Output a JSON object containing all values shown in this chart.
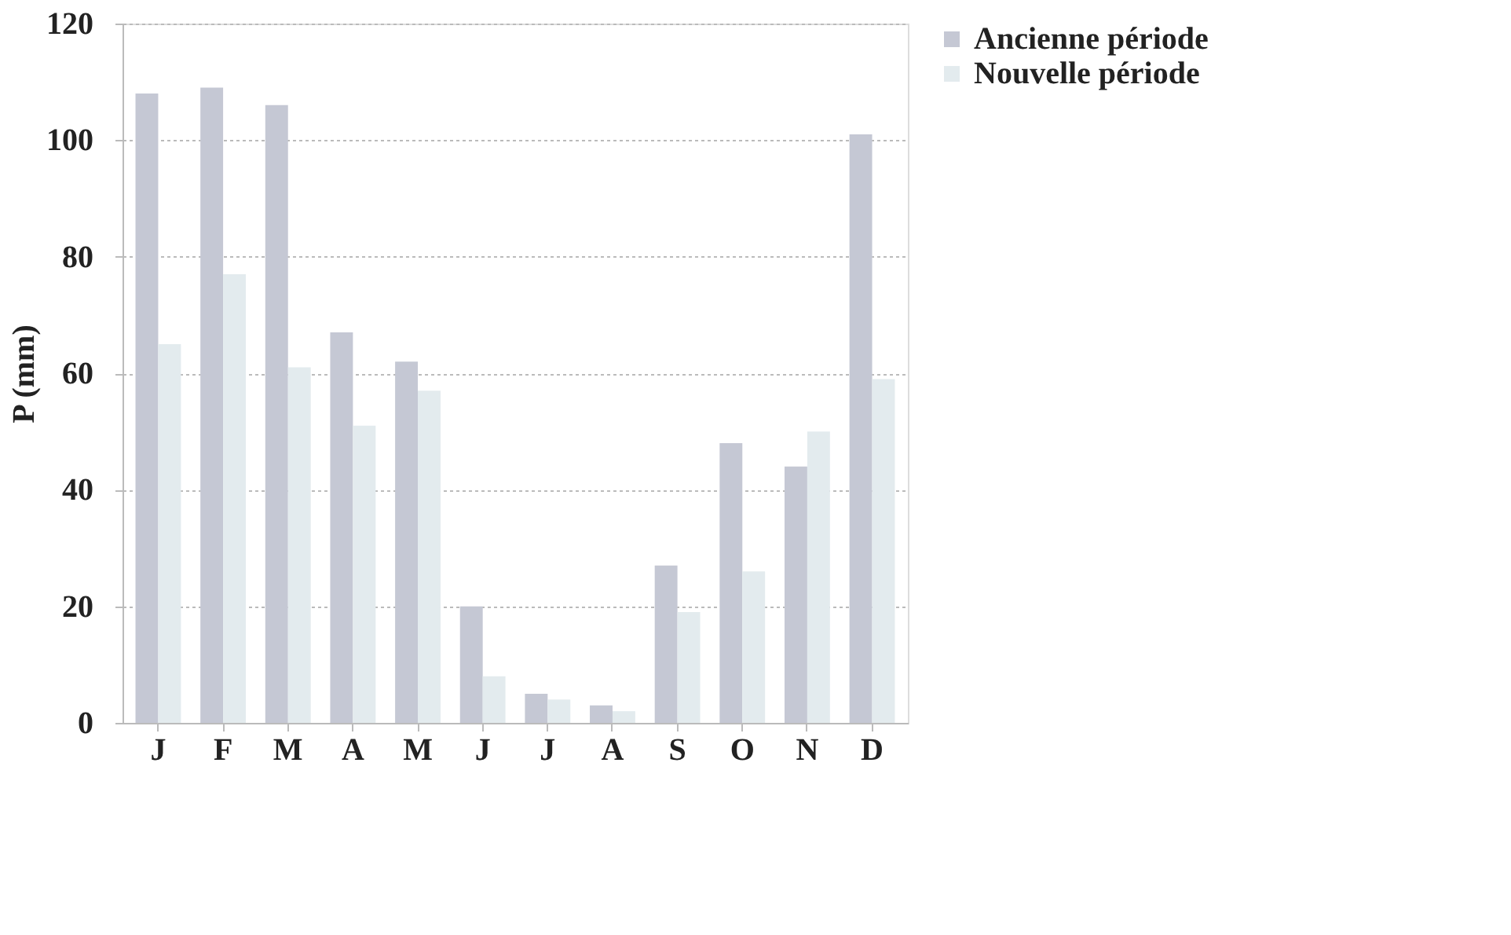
{
  "chart_data": {
    "type": "bar",
    "ylabel": "P (mm)",
    "categories": [
      "J",
      "F",
      "M",
      "A",
      "M",
      "J",
      "J",
      "A",
      "S",
      "O",
      "N",
      "D"
    ],
    "series": [
      {
        "name": "Ancienne période",
        "color": "#c5c8d4",
        "values": [
          108,
          109,
          106,
          67,
          62,
          20,
          5,
          3,
          27,
          48,
          44,
          101
        ]
      },
      {
        "name": "Nouvelle période",
        "color": "#e3ebee",
        "values": [
          65,
          77,
          61,
          51,
          57,
          8,
          4,
          2,
          19,
          26,
          50,
          59
        ]
      }
    ],
    "ylim": [
      0,
      120
    ],
    "yticks": [
      0,
      20,
      40,
      60,
      80,
      100,
      120
    ],
    "grid": "y",
    "legend": "right"
  }
}
